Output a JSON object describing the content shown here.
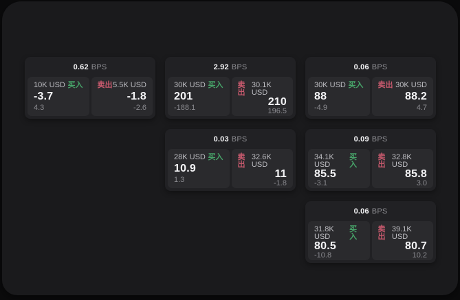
{
  "labels": {
    "bps": "BPS",
    "buy": "买入",
    "sell": "卖出"
  },
  "colors": {
    "buy_accent": "#47a369",
    "sell_accent": "#c95a6e",
    "window_bg": "#1a1a1c",
    "card_bg": "#212124",
    "panel_bg": "#2a2a2d"
  },
  "cards": [
    {
      "bps": "0.62",
      "buy": {
        "amount": "10K USD",
        "price": "-3.7",
        "delta": "4.3"
      },
      "sell": {
        "amount": "5.5K USD",
        "price": "-1.8",
        "delta": "-2.6"
      }
    },
    {
      "bps": "2.92",
      "buy": {
        "amount": "30K USD",
        "price": "201",
        "delta": "-188.1"
      },
      "sell": {
        "amount": "30.1K USD",
        "price": "210",
        "delta": "196.5"
      }
    },
    {
      "bps": "0.06",
      "buy": {
        "amount": "30K USD",
        "price": "88",
        "delta": "-4.9"
      },
      "sell": {
        "amount": "30K USD",
        "price": "88.2",
        "delta": "4.7"
      }
    },
    {
      "bps": "0.03",
      "buy": {
        "amount": "28K USD",
        "price": "10.9",
        "delta": "1.3"
      },
      "sell": {
        "amount": "32.6K USD",
        "price": "11",
        "delta": "-1.8"
      }
    },
    {
      "bps": "0.09",
      "buy": {
        "amount": "34.1K USD",
        "price": "85.5",
        "delta": "-3.1"
      },
      "sell": {
        "amount": "32.8K USD",
        "price": "85.8",
        "delta": "3.0"
      }
    },
    {
      "bps": "0.06",
      "buy": {
        "amount": "31.8K USD",
        "price": "80.5",
        "delta": "-10.8"
      },
      "sell": {
        "amount": "39.1K USD",
        "price": "80.7",
        "delta": "10.2"
      }
    }
  ]
}
